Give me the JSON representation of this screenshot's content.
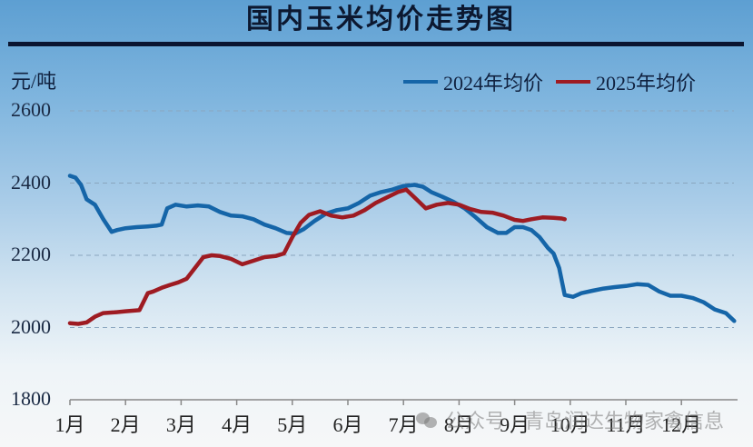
{
  "header": {
    "title": "国内玉米均价走势图",
    "unit": "元/吨"
  },
  "legend": [
    {
      "label": "2024年均价",
      "color": "#1565a8"
    },
    {
      "label": "2025年均价",
      "color": "#9e1b22"
    }
  ],
  "watermark": {
    "text": "公众号 · 青岛润达生物家禽信息"
  },
  "chart_data": {
    "type": "line",
    "title": "国内玉米均价走势图",
    "xlabel": "",
    "ylabel": "元/吨",
    "ylim": [
      1800,
      2600
    ],
    "yticks": [
      2600,
      2400,
      2200,
      2000,
      1800
    ],
    "categories": [
      "1月",
      "2月",
      "3月",
      "4月",
      "5月",
      "6月",
      "7月",
      "8月",
      "9月",
      "10月",
      "11月",
      "12月"
    ],
    "grid": "horizontal dashed",
    "legend_position": "top-right",
    "x_note": "x values are fractional month positions (1.0 = start of 1月, 12.0 = 12月 tick)",
    "series": [
      {
        "name": "2024年均价",
        "color": "#1565a8",
        "x": [
          1.0,
          1.1,
          1.2,
          1.3,
          1.45,
          1.6,
          1.75,
          1.85,
          2.0,
          2.2,
          2.4,
          2.55,
          2.65,
          2.75,
          2.9,
          3.1,
          3.3,
          3.5,
          3.7,
          3.9,
          4.1,
          4.3,
          4.5,
          4.7,
          4.9,
          5.05,
          5.2,
          5.4,
          5.6,
          5.8,
          6.0,
          6.2,
          6.4,
          6.6,
          6.8,
          7.0,
          7.2,
          7.35,
          7.5,
          7.7,
          7.9,
          8.1,
          8.3,
          8.5,
          8.7,
          8.85,
          9.0,
          9.15,
          9.3,
          9.45,
          9.6,
          9.7,
          9.8,
          9.9,
          10.05,
          10.2,
          10.4,
          10.6,
          10.8,
          11.0,
          11.2,
          11.4,
          11.6,
          11.8,
          12.0,
          12.2,
          12.4,
          12.6,
          12.8,
          12.95
        ],
        "values": [
          2420,
          2415,
          2395,
          2355,
          2340,
          2300,
          2265,
          2270,
          2275,
          2278,
          2280,
          2282,
          2285,
          2330,
          2340,
          2335,
          2338,
          2335,
          2320,
          2310,
          2308,
          2300,
          2285,
          2275,
          2262,
          2260,
          2272,
          2295,
          2315,
          2325,
          2330,
          2345,
          2365,
          2375,
          2382,
          2392,
          2395,
          2390,
          2375,
          2362,
          2348,
          2330,
          2305,
          2278,
          2262,
          2262,
          2278,
          2278,
          2270,
          2250,
          2220,
          2205,
          2165,
          2090,
          2085,
          2095,
          2102,
          2108,
          2112,
          2115,
          2120,
          2118,
          2100,
          2088,
          2088,
          2082,
          2070,
          2050,
          2040,
          2018
        ]
      },
      {
        "name": "2025年均价",
        "color": "#9e1b22",
        "x": [
          1.0,
          1.15,
          1.3,
          1.45,
          1.6,
          1.8,
          2.0,
          2.25,
          2.4,
          2.5,
          2.65,
          2.8,
          2.95,
          3.1,
          3.25,
          3.4,
          3.55,
          3.7,
          3.9,
          4.1,
          4.3,
          4.5,
          4.7,
          4.85,
          5.0,
          5.15,
          5.3,
          5.5,
          5.7,
          5.9,
          6.1,
          6.3,
          6.5,
          6.7,
          6.9,
          7.05,
          7.2,
          7.4,
          7.6,
          7.8,
          8.0,
          8.2,
          8.4,
          8.6,
          8.8,
          9.0,
          9.15,
          9.3,
          9.5,
          9.7,
          9.85,
          9.9
        ],
        "values": [
          2012,
          2010,
          2014,
          2030,
          2040,
          2042,
          2045,
          2048,
          2095,
          2100,
          2110,
          2118,
          2125,
          2135,
          2165,
          2195,
          2200,
          2198,
          2190,
          2175,
          2185,
          2195,
          2198,
          2205,
          2250,
          2290,
          2312,
          2322,
          2310,
          2305,
          2310,
          2325,
          2345,
          2360,
          2375,
          2382,
          2360,
          2330,
          2340,
          2345,
          2340,
          2328,
          2320,
          2318,
          2310,
          2298,
          2295,
          2300,
          2305,
          2304,
          2302,
          2300
        ]
      }
    ]
  }
}
